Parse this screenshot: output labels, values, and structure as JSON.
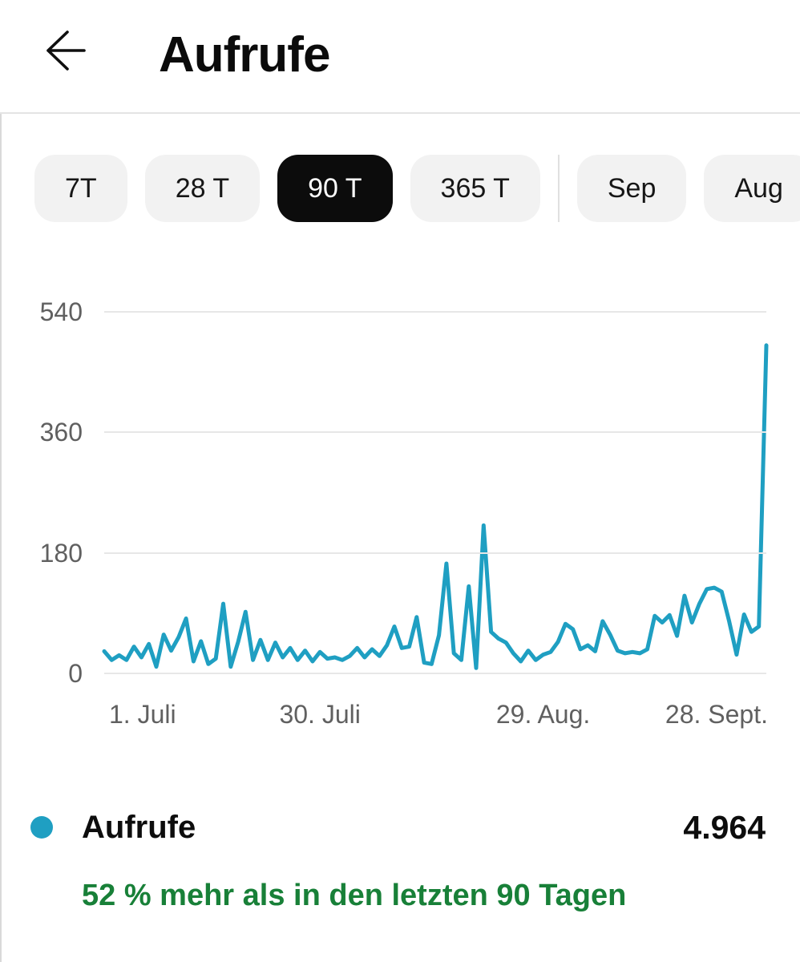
{
  "header": {
    "title": "Aufrufe"
  },
  "chips": {
    "time_ranges": [
      {
        "label": "7T",
        "selected": false
      },
      {
        "label": "28 T",
        "selected": false
      },
      {
        "label": "90 T",
        "selected": true
      },
      {
        "label": "365 T",
        "selected": false
      }
    ],
    "months": [
      {
        "label": "Sep",
        "selected": false
      },
      {
        "label": "Aug",
        "selected": false
      }
    ]
  },
  "chart_data": {
    "type": "line",
    "title": "Aufrufe",
    "series": [
      {
        "name": "Aufrufe",
        "color": "#1f9fc2",
        "values": [
          33,
          20,
          27,
          20,
          40,
          24,
          44,
          10,
          58,
          34,
          54,
          82,
          18,
          48,
          14,
          22,
          104,
          10,
          47,
          92,
          20,
          50,
          20,
          46,
          24,
          38,
          20,
          34,
          18,
          32,
          22,
          24,
          20,
          26,
          38,
          24,
          36,
          26,
          42,
          70,
          38,
          40,
          84,
          16,
          14,
          57,
          164,
          30,
          20,
          130,
          8,
          221,
          62,
          52,
          46,
          30,
          18,
          34,
          20,
          28,
          32,
          47,
          74,
          66,
          36,
          42,
          33,
          78,
          58,
          34,
          30,
          32,
          30,
          36,
          86,
          76,
          87,
          56,
          116,
          76,
          104,
          126,
          128,
          122,
          78,
          28,
          88,
          62,
          70,
          490
        ]
      }
    ],
    "x_tick_labels": [
      "1. Juli",
      "30. Juli",
      "29. Aug.",
      "28. Sept."
    ],
    "x_tick_indices": [
      0,
      29,
      59,
      89
    ],
    "y_ticks": [
      0,
      180,
      360,
      540
    ],
    "ylim": [
      0,
      540
    ],
    "grid": true,
    "legend_position": "bottom"
  },
  "legend": {
    "series_label": "Aufrufe",
    "total_value": "4.964",
    "dot_color": "#1f9fc2"
  },
  "summary": {
    "text": "52 % mehr als in den letzten 90 Tagen",
    "color": "#188038"
  }
}
